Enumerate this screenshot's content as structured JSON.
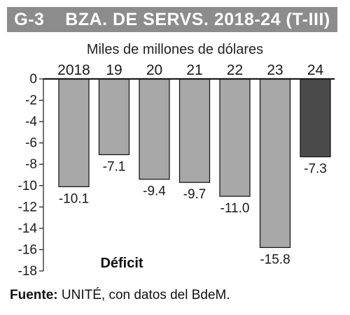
{
  "title": "G-3    BZA. DE SERVS. 2018-24 (T-III)",
  "subtitle": "Miles de millones de dólares",
  "annotation": "Déficit",
  "source": {
    "label": "Fuente:",
    "text": " UNITÉ, con datos del BdeM."
  },
  "colors": {
    "title_bg": "#8c8c8c",
    "bar": "#a8a8a8",
    "bar_highlight": "#4a4a4a",
    "bar_stroke": "#1a1a1a"
  },
  "chart_data": {
    "type": "bar",
    "categories": [
      "2018",
      "19",
      "20",
      "21",
      "22",
      "23",
      "24"
    ],
    "values": [
      -10.1,
      -7.1,
      -9.4,
      -9.7,
      -11.0,
      -15.8,
      -7.3
    ],
    "value_labels": [
      "-10.1",
      "-7.1",
      "-9.4",
      "-9.7",
      "-11.0",
      "-15.8",
      "-7.3"
    ],
    "highlight_index": 6,
    "ylim": [
      -18,
      0
    ],
    "yticks": [
      0,
      -2,
      -4,
      -6,
      -8,
      -10,
      -12,
      -14,
      -16,
      -18
    ],
    "ytick_labels": [
      "0",
      "-2",
      "-4",
      "-6",
      "-8",
      "-10",
      "-12",
      "-14",
      "-16",
      "-18"
    ],
    "xlabel": "",
    "ylabel": "",
    "grid": false,
    "legend": null
  }
}
